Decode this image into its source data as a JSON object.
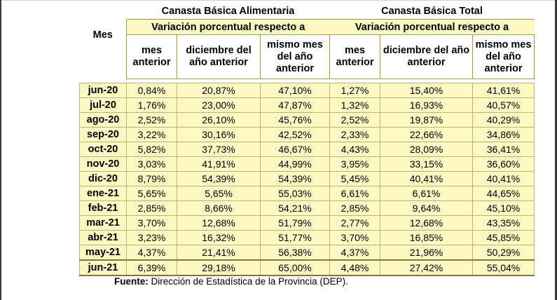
{
  "header": {
    "mes_label": "Mes",
    "group_cba": "Canasta Básica Alimentaria",
    "group_cbt": "Canasta Básica Total",
    "subheader": "Variación porcentual respecto a",
    "col_mes_anterior": "mes anterior",
    "col_diciembre": "diciembre del año anterior",
    "col_mismo_mes": "mismo mes del año anterior"
  },
  "rows": [
    {
      "mes": "jun-20",
      "cba_mes": "0,84%",
      "cba_dic": "20,87%",
      "cba_anual": "47,10%",
      "cbt_mes": "1,27%",
      "cbt_dic": "15,40%",
      "cbt_anual": "41,61%"
    },
    {
      "mes": "jul-20",
      "cba_mes": "1,76%",
      "cba_dic": "23,00%",
      "cba_anual": "47,87%",
      "cbt_mes": "1,32%",
      "cbt_dic": "16,93%",
      "cbt_anual": "40,57%"
    },
    {
      "mes": "ago-20",
      "cba_mes": "2,52%",
      "cba_dic": "26,10%",
      "cba_anual": "45,76%",
      "cbt_mes": "2,52%",
      "cbt_dic": "19,87%",
      "cbt_anual": "40,29%"
    },
    {
      "mes": "sep-20",
      "cba_mes": "3,22%",
      "cba_dic": "30,16%",
      "cba_anual": "42,52%",
      "cbt_mes": "2,33%",
      "cbt_dic": "22,66%",
      "cbt_anual": "34,86%"
    },
    {
      "mes": "oct-20",
      "cba_mes": "5,82%",
      "cba_dic": "37,73%",
      "cba_anual": "46,67%",
      "cbt_mes": "4,43%",
      "cbt_dic": "28,09%",
      "cbt_anual": "36,41%"
    },
    {
      "mes": "nov-20",
      "cba_mes": "3,03%",
      "cba_dic": "41,91%",
      "cba_anual": "44,99%",
      "cbt_mes": "3,95%",
      "cbt_dic": "33,15%",
      "cbt_anual": "36,60%"
    },
    {
      "mes": "dic-20",
      "cba_mes": "8,79%",
      "cba_dic": "54,39%",
      "cba_anual": "54,39%",
      "cbt_mes": "5,45%",
      "cbt_dic": "40,41%",
      "cbt_anual": "40,41%"
    },
    {
      "mes": "ene-21",
      "cba_mes": "5,65%",
      "cba_dic": "5,65%",
      "cba_anual": "55,03%",
      "cbt_mes": "6,61%",
      "cbt_dic": "6,61%",
      "cbt_anual": "44,65%"
    },
    {
      "mes": "feb-21",
      "cba_mes": "2,85%",
      "cba_dic": "8,66%",
      "cba_anual": "54,21%",
      "cbt_mes": "2,85%",
      "cbt_dic": "9,64%",
      "cbt_anual": "45,10%"
    },
    {
      "mes": "mar-21",
      "cba_mes": "3,70%",
      "cba_dic": "12,68%",
      "cba_anual": "51,79%",
      "cbt_mes": "2,77%",
      "cbt_dic": "12,68%",
      "cbt_anual": "43,35%"
    },
    {
      "mes": "abr-21",
      "cba_mes": "3,23%",
      "cba_dic": "16,32%",
      "cba_anual": "51,77%",
      "cbt_mes": "3,70%",
      "cbt_dic": "16,85%",
      "cbt_anual": "45,85%"
    },
    {
      "mes": "may-21",
      "cba_mes": "4,37%",
      "cba_dic": "21,41%",
      "cba_anual": "56,38%",
      "cbt_mes": "4,37%",
      "cbt_dic": "21,96%",
      "cbt_anual": "50,29%"
    },
    {
      "mes": "jun-21",
      "cba_mes": "6,39%",
      "cba_dic": "29,18%",
      "cba_anual": "65,00%",
      "cbt_mes": "4,48%",
      "cbt_dic": "27,42%",
      "cbt_anual": "55,04%"
    }
  ],
  "footer": {
    "fuente_label": "Fuente:",
    "fuente_text": "Dirección de Estadística de la Provincia (DEP)."
  }
}
